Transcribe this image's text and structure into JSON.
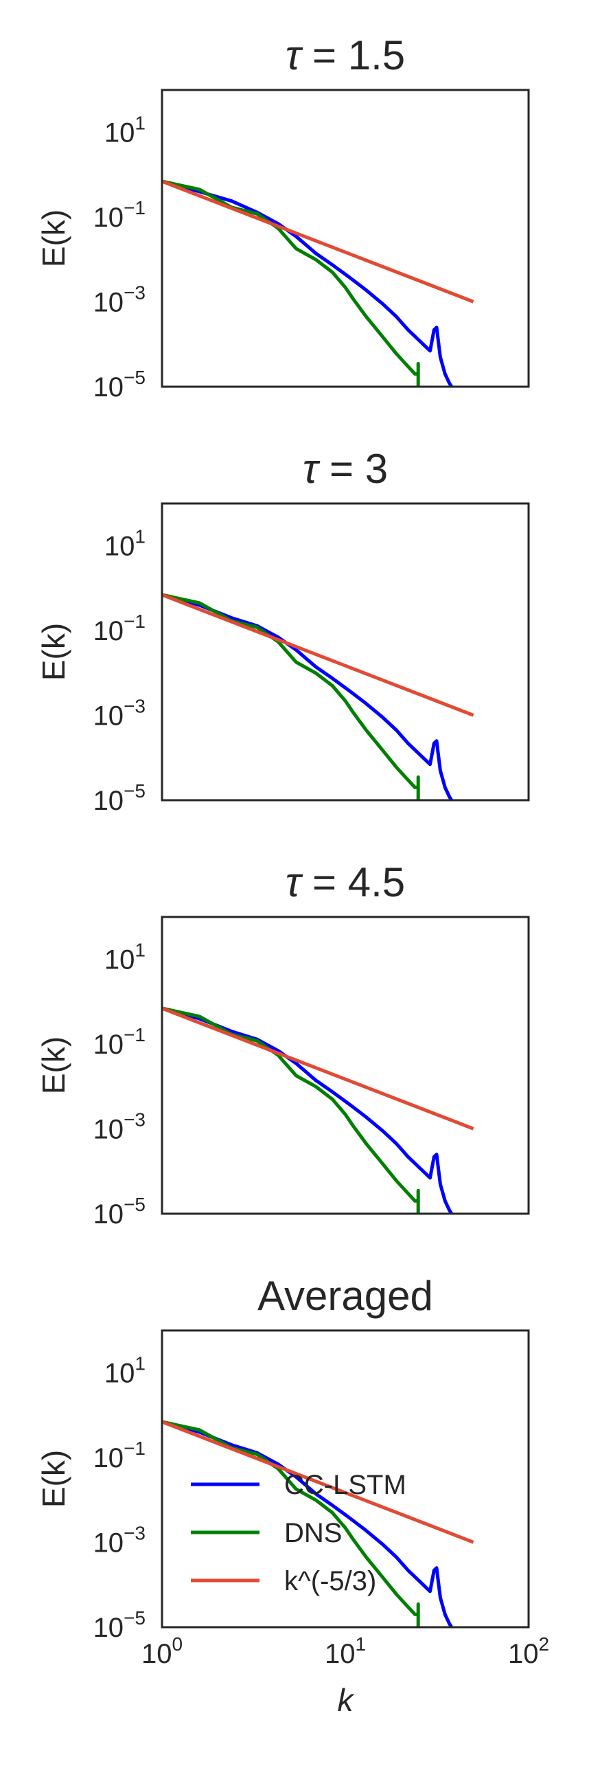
{
  "chart_data": [
    {
      "type": "line",
      "title": "τ = 1.5",
      "title_parts": {
        "symbol": "τ",
        "eq": " = ",
        "value": "1.5"
      },
      "xlabel": "",
      "ylabel": "E(k)",
      "xscale": "log",
      "yscale": "log",
      "xlim": [
        1,
        100
      ],
      "ylim": [
        1e-05,
        100
      ],
      "x_tick_labels": [],
      "y_tick_labels": [
        {
          "value": 10,
          "base": "10",
          "exp": "1"
        },
        {
          "value": 0.1,
          "base": "10",
          "exp": "−1"
        },
        {
          "value": 0.001,
          "base": "10",
          "exp": "−3"
        },
        {
          "value": 1e-05,
          "base": "10",
          "exp": "−5"
        }
      ],
      "grid": false,
      "legend": null,
      "series": [
        {
          "name": "CC-LSTM",
          "color": "#0000ff",
          "x": [
            1,
            1.6,
            2.4,
            3.3,
            4.3,
            5.4,
            6.9,
            8.5,
            10,
            11,
            13,
            16,
            19,
            22,
            26,
            29,
            30.5,
            31.5,
            33,
            35,
            37,
            38
          ],
          "y": [
            0.7,
            0.4,
            0.24,
            0.13,
            0.07,
            0.035,
            0.014,
            0.0075,
            0.0045,
            0.0033,
            0.0019,
            0.0009,
            0.00045,
            0.00022,
            0.00011,
            7e-05,
            0.00022,
            0.00025,
            5e-05,
            2e-05,
            1.2e-05,
            1e-05
          ]
        },
        {
          "name": "DNS",
          "color": "#008000",
          "x": [
            1,
            1.6,
            2.4,
            3.3,
            4.3,
            5.4,
            6.9,
            8.5,
            10,
            11,
            13,
            16,
            19,
            22,
            24,
            25,
            25,
            25
          ],
          "y": [
            0.7,
            0.45,
            0.17,
            0.12,
            0.055,
            0.018,
            0.01,
            0.005,
            0.0022,
            0.0012,
            0.00045,
            0.00015,
            6e-05,
            3e-05,
            2e-05,
            2e-05,
            3.5e-05,
            1e-05
          ]
        },
        {
          "name": "k^(-5/3)",
          "color": "#e24a33",
          "x": [
            1,
            50
          ],
          "y": [
            0.7,
            0.00101
          ]
        }
      ]
    },
    {
      "type": "line",
      "title": "τ = 3",
      "title_parts": {
        "symbol": "τ",
        "eq": " = ",
        "value": "3"
      },
      "xlabel": "",
      "ylabel": "E(k)",
      "xscale": "log",
      "yscale": "log",
      "xlim": [
        1,
        100
      ],
      "ylim": [
        1e-05,
        100
      ],
      "x_tick_labels": [],
      "y_tick_labels": [
        {
          "value": 10,
          "base": "10",
          "exp": "1"
        },
        {
          "value": 0.1,
          "base": "10",
          "exp": "−1"
        },
        {
          "value": 0.001,
          "base": "10",
          "exp": "−3"
        },
        {
          "value": 1e-05,
          "base": "10",
          "exp": "−5"
        }
      ],
      "grid": false,
      "legend": null,
      "series": [
        {
          "name": "CC-LSTM",
          "color": "#0000ff",
          "x": [
            1,
            1.6,
            2.4,
            3.3,
            4.3,
            5.4,
            6.9,
            8.5,
            10,
            11,
            13,
            16,
            19,
            22,
            26,
            29,
            30.5,
            31.5,
            33,
            35,
            37,
            38
          ],
          "y": [
            0.7,
            0.4,
            0.2,
            0.13,
            0.07,
            0.035,
            0.014,
            0.0075,
            0.0045,
            0.0033,
            0.0019,
            0.0009,
            0.00045,
            0.00022,
            0.00011,
            7e-05,
            0.00022,
            0.00025,
            5e-05,
            2e-05,
            1.2e-05,
            1e-05
          ]
        },
        {
          "name": "DNS",
          "color": "#008000",
          "x": [
            1,
            1.6,
            2.4,
            3.3,
            4.3,
            5.4,
            6.9,
            8.5,
            10,
            11,
            13,
            16,
            19,
            22,
            24,
            25,
            25,
            25
          ],
          "y": [
            0.7,
            0.45,
            0.17,
            0.12,
            0.055,
            0.018,
            0.01,
            0.005,
            0.0022,
            0.0012,
            0.00045,
            0.00015,
            6e-05,
            3e-05,
            2e-05,
            2e-05,
            3.5e-05,
            1e-05
          ]
        },
        {
          "name": "k^(-5/3)",
          "color": "#e24a33",
          "x": [
            1,
            50
          ],
          "y": [
            0.7,
            0.00101
          ]
        }
      ]
    },
    {
      "type": "line",
      "title": "τ = 4.5",
      "title_parts": {
        "symbol": "τ",
        "eq": " = ",
        "value": "4.5"
      },
      "xlabel": "",
      "ylabel": "E(k)",
      "xscale": "log",
      "yscale": "log",
      "xlim": [
        1,
        100
      ],
      "ylim": [
        1e-05,
        100
      ],
      "x_tick_labels": [],
      "y_tick_labels": [
        {
          "value": 10,
          "base": "10",
          "exp": "1"
        },
        {
          "value": 0.1,
          "base": "10",
          "exp": "−1"
        },
        {
          "value": 0.001,
          "base": "10",
          "exp": "−3"
        },
        {
          "value": 1e-05,
          "base": "10",
          "exp": "−5"
        }
      ],
      "grid": false,
      "legend": null,
      "series": [
        {
          "name": "CC-LSTM",
          "color": "#0000ff",
          "x": [
            1,
            1.6,
            2.4,
            3.3,
            4.3,
            5.4,
            6.9,
            8.5,
            10,
            11,
            13,
            16,
            19,
            22,
            26,
            29,
            30.5,
            31.5,
            33,
            35,
            37,
            38
          ],
          "y": [
            0.7,
            0.4,
            0.2,
            0.13,
            0.07,
            0.035,
            0.014,
            0.0075,
            0.0045,
            0.0033,
            0.0019,
            0.0009,
            0.00045,
            0.00022,
            0.00011,
            7e-05,
            0.00022,
            0.00025,
            5e-05,
            2e-05,
            1.2e-05,
            1e-05
          ]
        },
        {
          "name": "DNS",
          "color": "#008000",
          "x": [
            1,
            1.6,
            2.4,
            3.3,
            4.3,
            5.4,
            6.9,
            8.5,
            10,
            11,
            13,
            16,
            19,
            22,
            24,
            25,
            25,
            25
          ],
          "y": [
            0.7,
            0.45,
            0.17,
            0.12,
            0.055,
            0.018,
            0.01,
            0.005,
            0.0022,
            0.0012,
            0.00045,
            0.00015,
            6e-05,
            3e-05,
            2e-05,
            2e-05,
            3.5e-05,
            1e-05
          ]
        },
        {
          "name": "k^(-5/3)",
          "color": "#e24a33",
          "x": [
            1,
            50
          ],
          "y": [
            0.7,
            0.00101
          ]
        }
      ]
    },
    {
      "type": "line",
      "title": "Averaged",
      "title_parts": {
        "text": "Averaged"
      },
      "xlabel": "k",
      "ylabel": "E(k)",
      "xscale": "log",
      "yscale": "log",
      "xlim": [
        1,
        100
      ],
      "ylim": [
        1e-05,
        100
      ],
      "x_tick_labels": [
        {
          "value": 1,
          "base": "10",
          "exp": "0"
        },
        {
          "value": 10,
          "base": "10",
          "exp": "1"
        },
        {
          "value": 100,
          "base": "10",
          "exp": "2"
        }
      ],
      "y_tick_labels": [
        {
          "value": 10,
          "base": "10",
          "exp": "1"
        },
        {
          "value": 0.1,
          "base": "10",
          "exp": "−1"
        },
        {
          "value": 0.001,
          "base": "10",
          "exp": "−3"
        },
        {
          "value": 1e-05,
          "base": "10",
          "exp": "−5"
        }
      ],
      "grid": false,
      "legend": "lower-left",
      "series": [
        {
          "name": "CC-LSTM",
          "color": "#0000ff",
          "x": [
            1,
            1.6,
            2.4,
            3.3,
            4.3,
            5.4,
            6.9,
            8.5,
            10,
            11,
            13,
            16,
            19,
            22,
            26,
            29,
            30.5,
            31.5,
            33,
            35,
            37,
            38
          ],
          "y": [
            0.7,
            0.4,
            0.2,
            0.13,
            0.07,
            0.035,
            0.014,
            0.0075,
            0.0045,
            0.0033,
            0.0019,
            0.0009,
            0.00045,
            0.00022,
            0.00011,
            7e-05,
            0.00022,
            0.00025,
            5e-05,
            2e-05,
            1.2e-05,
            1e-05
          ]
        },
        {
          "name": "DNS",
          "color": "#008000",
          "x": [
            1,
            1.6,
            2.4,
            3.3,
            4.3,
            5.4,
            6.9,
            8.5,
            10,
            11,
            13,
            16,
            19,
            22,
            24,
            25,
            25,
            25
          ],
          "y": [
            0.7,
            0.45,
            0.17,
            0.12,
            0.055,
            0.018,
            0.01,
            0.005,
            0.0022,
            0.0012,
            0.00045,
            0.00015,
            6e-05,
            3e-05,
            2e-05,
            2e-05,
            3.5e-05,
            1e-05
          ]
        },
        {
          "name": "k^(-5/3)",
          "color": "#e24a33",
          "x": [
            1,
            50
          ],
          "y": [
            0.7,
            0.00101
          ]
        }
      ]
    }
  ]
}
